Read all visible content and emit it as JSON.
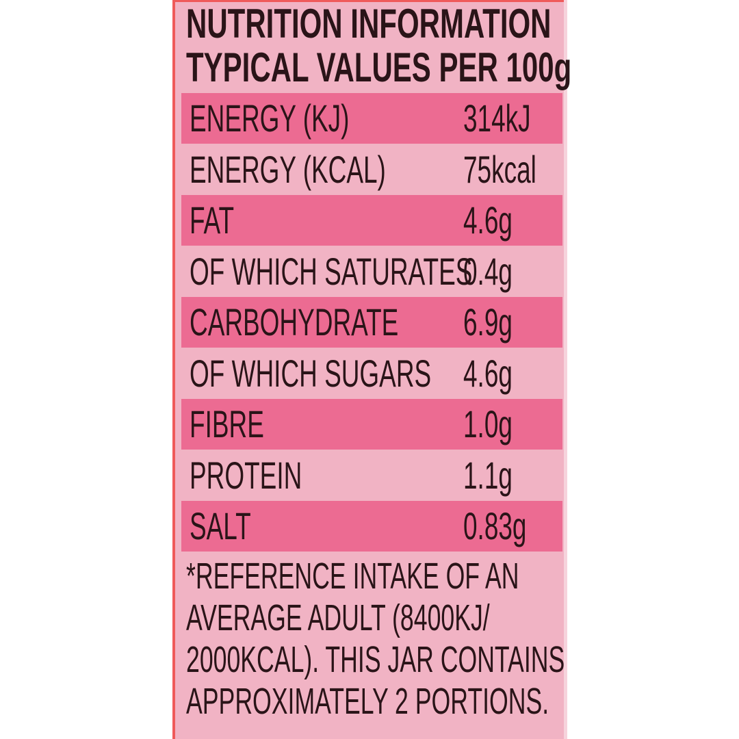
{
  "title_line1": "NUTRITION INFORMATION",
  "title_line2": "TYPICAL VALUES PER 100g",
  "rows": [
    {
      "label": "ENERGY (KJ)",
      "value": "314kJ"
    },
    {
      "label": "ENERGY (KCAL)",
      "value": "75kcal"
    },
    {
      "label": "FAT",
      "value": "4.6g"
    },
    {
      "label": "OF WHICH SATURATES",
      "value": "0.4g"
    },
    {
      "label": "CARBOHYDRATE",
      "value": "6.9g"
    },
    {
      "label": "OF WHICH SUGARS",
      "value": "4.6g"
    },
    {
      "label": "FIBRE",
      "value": "1.0g"
    },
    {
      "label": "PROTEIN",
      "value": "1.1g"
    },
    {
      "label": "SALT",
      "value": "0.83g"
    }
  ],
  "footnote": [
    "*REFERENCE INTAKE OF AN",
    "AVERAGE ADULT (8400KJ/",
    "2000KCAL). THIS JAR CONTAINS",
    "APPROXIMATELY 2 PORTIONS."
  ],
  "colors": {
    "background": "#f1b3c4",
    "stripe": "#ec6b92",
    "border": "#ef5a5a",
    "text": "#2a1418"
  }
}
